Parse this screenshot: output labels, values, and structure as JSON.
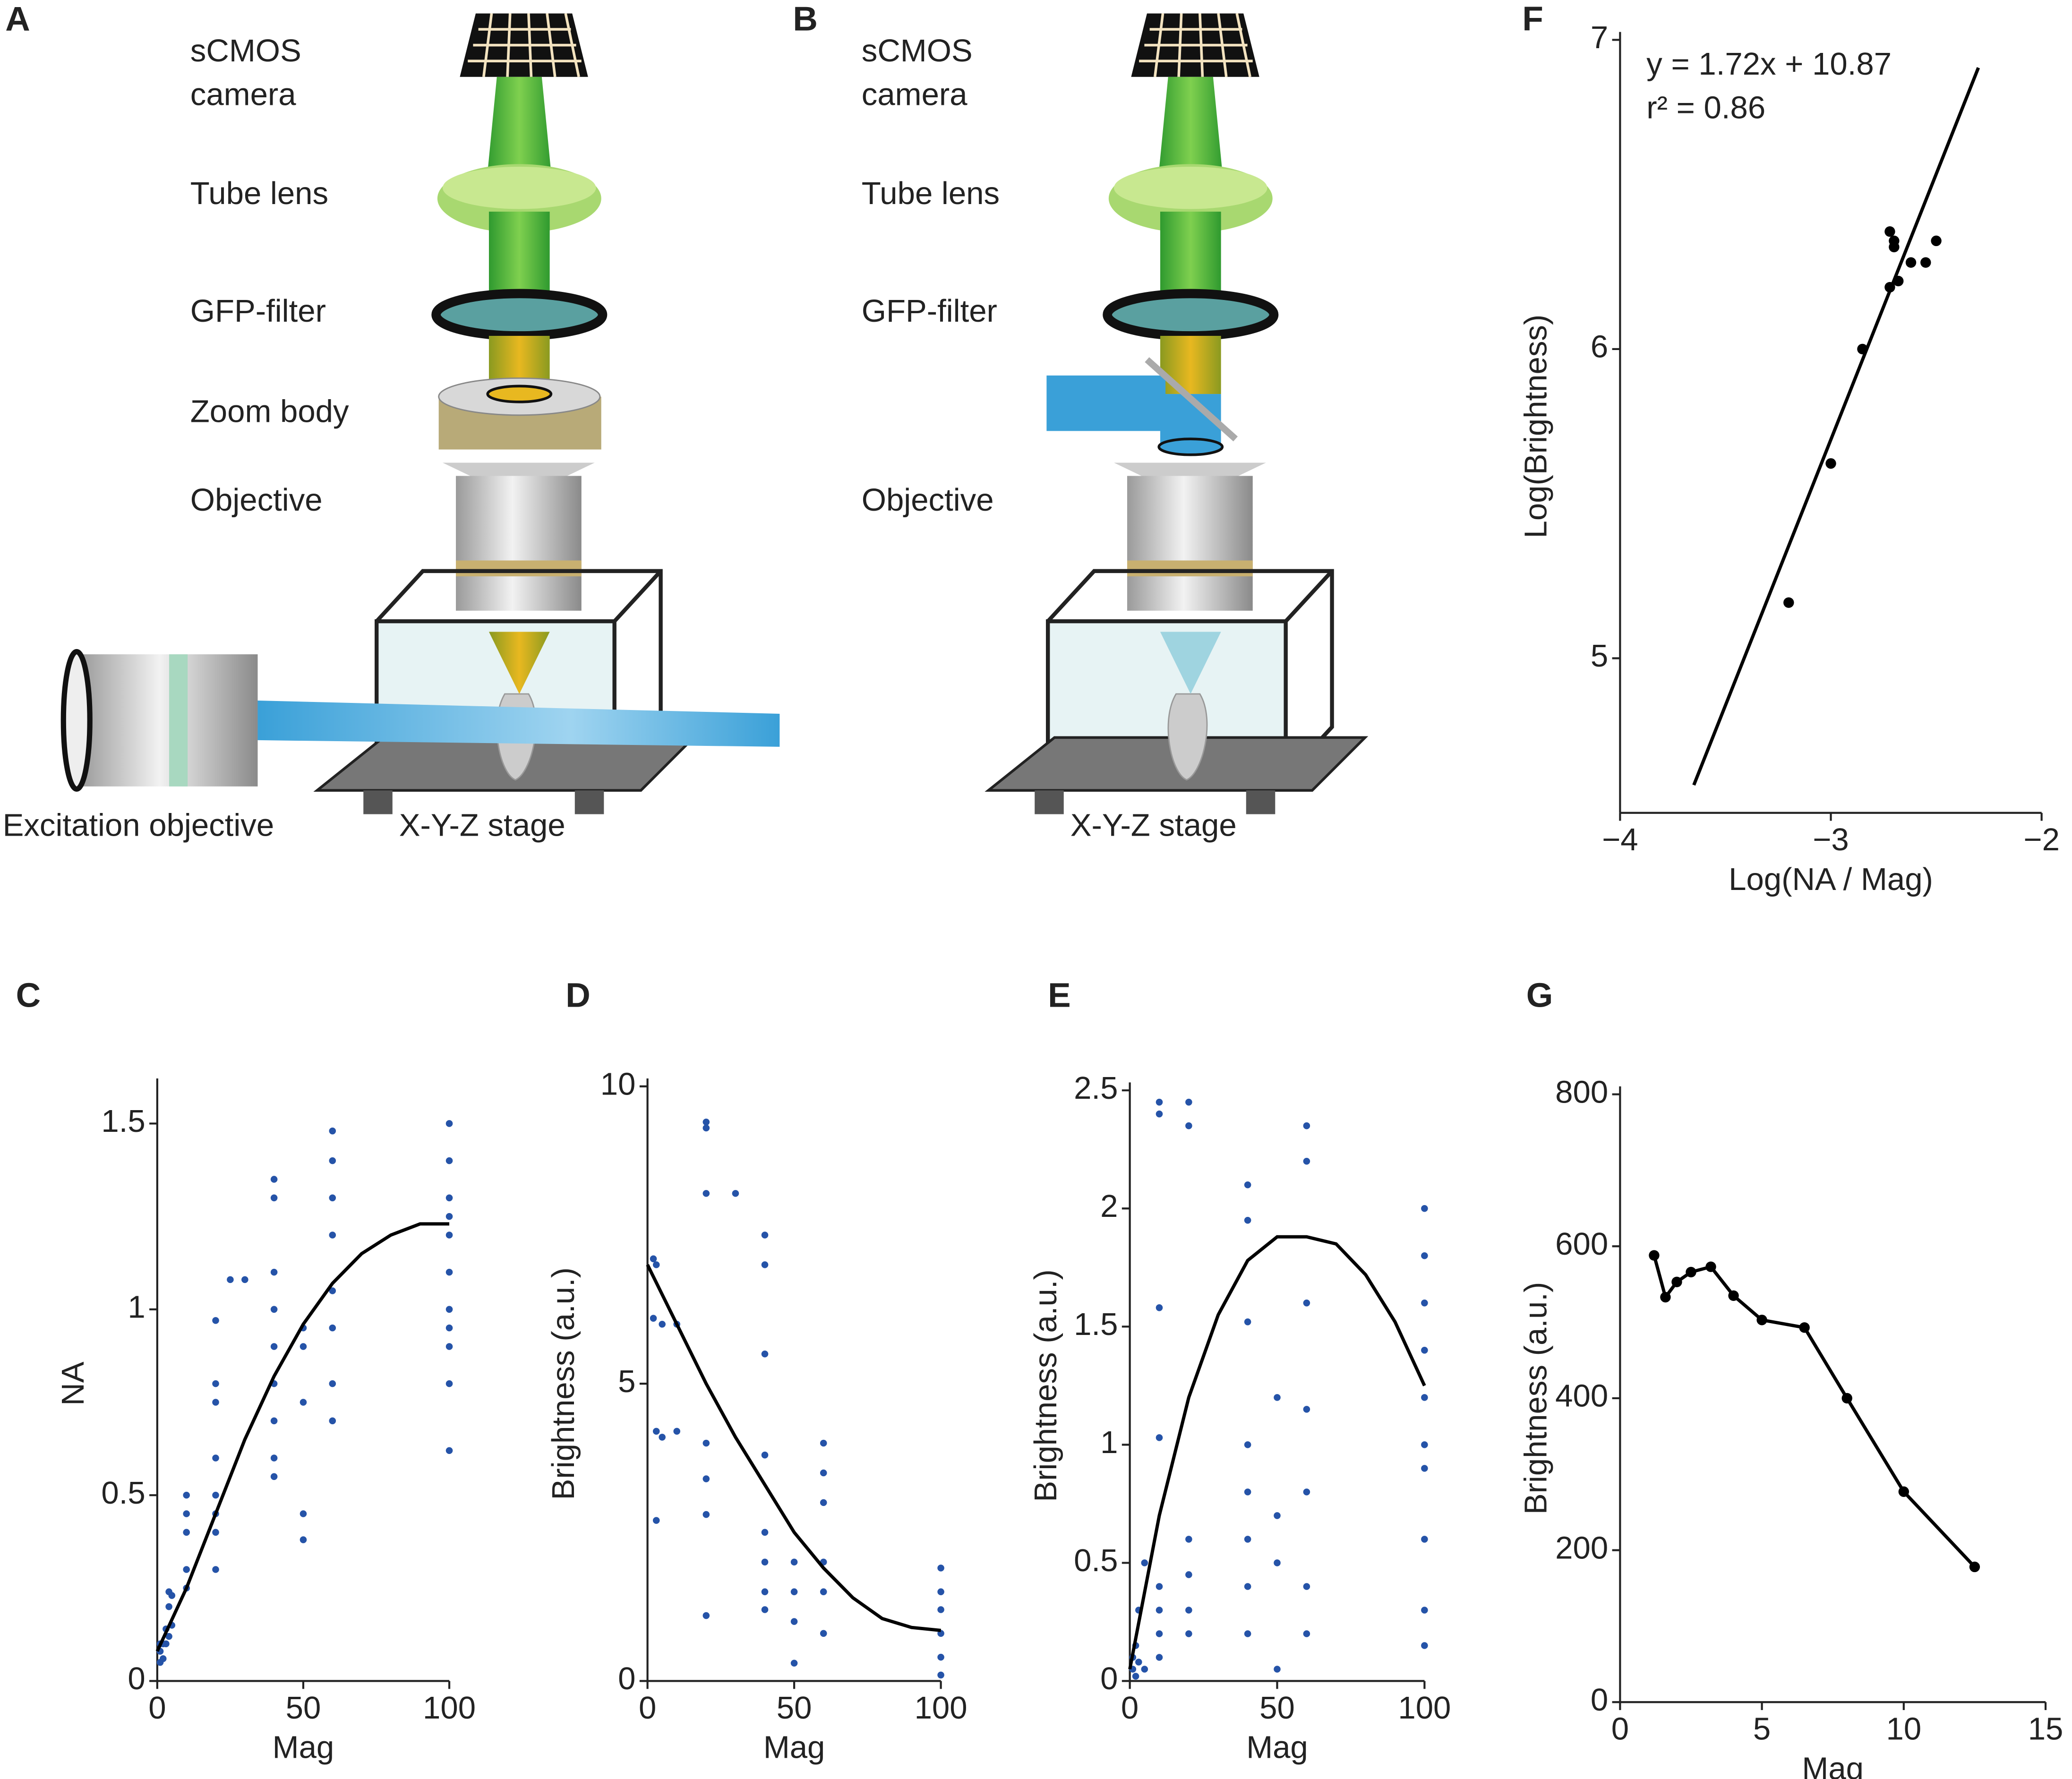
{
  "diagram_a": {
    "panel": "A",
    "camera": [
      "sCMOS",
      "camera"
    ],
    "tube_lens": "Tube lens",
    "filter": "GFP-filter",
    "zoom": "Zoom body",
    "objective": "Objective",
    "excitation": "Excitation objective",
    "stage": "X-Y-Z stage"
  },
  "diagram_b": {
    "panel": "B",
    "camera": [
      "sCMOS",
      "camera"
    ],
    "tube_lens": "Tube lens",
    "filter": "GFP-filter",
    "objective": "Objective",
    "stage": "X-Y-Z stage"
  },
  "chart_data": [
    {
      "type": "scatter",
      "panel": "C",
      "x_label": "Mag",
      "y_label": "NA",
      "xlim": [
        0,
        100
      ],
      "ylim": [
        0,
        1.6
      ],
      "xticks": [
        0,
        50,
        100
      ],
      "yticks": [
        0,
        0.5,
        1,
        1.5
      ],
      "series": [
        {
          "type": "scatter",
          "color": "#2553a8",
          "x": [
            1,
            1,
            1,
            2,
            2,
            3,
            3,
            4,
            4,
            4,
            5,
            5,
            10,
            10,
            10,
            10,
            10,
            20,
            20,
            20,
            20,
            20,
            20,
            20,
            20,
            25,
            30,
            40,
            40,
            40,
            40,
            40,
            40,
            40,
            40,
            40,
            50,
            50,
            50,
            50,
            50,
            60,
            60,
            60,
            60,
            60,
            60,
            60,
            60,
            100,
            100,
            100,
            100,
            100,
            100,
            100,
            100,
            100,
            100,
            100
          ],
          "values": [
            0.05,
            0.08,
            0.1,
            0.06,
            0.1,
            0.1,
            0.14,
            0.12,
            0.2,
            0.24,
            0.15,
            0.23,
            0.25,
            0.3,
            0.4,
            0.45,
            0.5,
            0.3,
            0.4,
            0.45,
            0.5,
            0.6,
            0.75,
            0.8,
            0.97,
            1.08,
            1.08,
            0.55,
            0.6,
            0.7,
            0.8,
            0.9,
            1.0,
            1.1,
            1.3,
            1.35,
            0.38,
            0.45,
            0.75,
            0.9,
            0.95,
            0.7,
            0.8,
            0.95,
            1.05,
            1.2,
            1.3,
            1.4,
            1.48,
            0.62,
            0.8,
            0.9,
            0.95,
            1.0,
            1.1,
            1.2,
            1.25,
            1.3,
            1.4,
            1.5
          ]
        },
        {
          "type": "line",
          "color": "#000000",
          "x": [
            0,
            10,
            20,
            30,
            40,
            50,
            60,
            70,
            80,
            90,
            100
          ],
          "values": [
            0.08,
            0.25,
            0.45,
            0.65,
            0.82,
            0.96,
            1.07,
            1.15,
            1.2,
            1.23,
            1.23
          ]
        }
      ]
    },
    {
      "type": "scatter",
      "panel": "D",
      "x_label": "Mag",
      "y_label": "Brightness (a.u.)",
      "xlim": [
        0,
        100
      ],
      "ylim": [
        0,
        10
      ],
      "xticks": [
        0,
        50,
        100
      ],
      "yticks": [
        0,
        5,
        10
      ],
      "series": [
        {
          "type": "scatter",
          "color": "#2553a8",
          "x": [
            2,
            2,
            3,
            3,
            3,
            5,
            5,
            10,
            10,
            20,
            20,
            20,
            20,
            20,
            20,
            20,
            30,
            40,
            40,
            40,
            40,
            40,
            40,
            40,
            40,
            50,
            50,
            50,
            50,
            60,
            60,
            60,
            60,
            60,
            60,
            100,
            100,
            100,
            100,
            100,
            100
          ],
          "values": [
            6.1,
            7.1,
            4.2,
            2.7,
            7.0,
            4.1,
            6.0,
            4.2,
            6.0,
            1.1,
            2.8,
            3.4,
            4.0,
            8.2,
            9.3,
            9.4,
            8.2,
            1.2,
            1.5,
            2.0,
            2.5,
            3.8,
            5.5,
            7.0,
            7.5,
            0.3,
            1.0,
            1.5,
            2.0,
            0.8,
            1.5,
            2.0,
            3.0,
            3.5,
            4.0,
            0.1,
            0.4,
            0.8,
            1.2,
            1.5,
            1.9
          ]
        },
        {
          "type": "line",
          "color": "#000000",
          "x": [
            0,
            10,
            20,
            30,
            40,
            50,
            60,
            70,
            80,
            90,
            100
          ],
          "values": [
            7,
            6,
            5,
            4.1,
            3.3,
            2.5,
            1.9,
            1.4,
            1.05,
            0.9,
            0.85
          ]
        }
      ]
    },
    {
      "type": "scatter",
      "panel": "E",
      "x_label": "Mag",
      "y_label": "Brightness (a.u.)",
      "xlim": [
        0,
        100
      ],
      "ylim": [
        0,
        2.5
      ],
      "xticks": [
        0,
        50,
        100
      ],
      "yticks": [
        0,
        0.5,
        1,
        1.5,
        2,
        2.5
      ],
      "series": [
        {
          "type": "scatter",
          "color": "#2553a8",
          "x": [
            1,
            1,
            2,
            2,
            3,
            3,
            5,
            5,
            10,
            10,
            10,
            10,
            10,
            10,
            10,
            10,
            20,
            20,
            20,
            20,
            20,
            20,
            40,
            40,
            40,
            40,
            40,
            40,
            40,
            40,
            50,
            50,
            50,
            50,
            60,
            60,
            60,
            60,
            60,
            60,
            60,
            100,
            100,
            100,
            100,
            100,
            100,
            100,
            100,
            100,
            100
          ],
          "values": [
            0.05,
            0.1,
            0.02,
            0.15,
            0.08,
            0.3,
            0.5,
            0.05,
            0.1,
            0.2,
            0.3,
            0.4,
            1.03,
            1.58,
            2.4,
            2.45,
            0.2,
            0.3,
            0.45,
            0.6,
            2.35,
            2.45,
            0.2,
            0.4,
            0.6,
            0.8,
            1.0,
            1.52,
            1.95,
            2.1,
            0.05,
            0.5,
            0.7,
            1.2,
            0.2,
            0.4,
            0.8,
            1.15,
            1.6,
            2.2,
            2.35,
            0.15,
            0.3,
            0.6,
            0.9,
            1.0,
            1.2,
            1.4,
            1.6,
            1.8,
            2.0
          ]
        },
        {
          "type": "line",
          "color": "#000000",
          "x": [
            0,
            10,
            20,
            30,
            40,
            50,
            60,
            70,
            80,
            90,
            100
          ],
          "values": [
            0.05,
            0.7,
            1.2,
            1.55,
            1.78,
            1.88,
            1.88,
            1.85,
            1.72,
            1.52,
            1.25
          ]
        }
      ]
    },
    {
      "type": "scatter",
      "panel": "F",
      "x_label": "Log(NA / Mag)",
      "y_label": "Log(Brightness)",
      "annotations": [
        "y = 1.72x + 10.87",
        "r² = 0.86"
      ],
      "xlim": [
        -4,
        -2
      ],
      "ylim": [
        4.5,
        7
      ],
      "xticks": [
        {
          "value": -4,
          "label": "−4"
        },
        {
          "value": -3,
          "label": "−3"
        },
        {
          "value": -2,
          "label": "−2"
        }
      ],
      "yticks": [
        5,
        6,
        7
      ],
      "series": [
        {
          "type": "scatter",
          "color": "#000000",
          "x": [
            -3.2,
            -3.0,
            -2.85,
            -2.72,
            -2.68,
            -2.62,
            -2.55,
            -2.5,
            -2.72,
            -2.7,
            -2.7
          ],
          "values": [
            5.18,
            5.63,
            6.0,
            6.2,
            6.22,
            6.28,
            6.28,
            6.35,
            6.38,
            6.33,
            6.35
          ]
        },
        {
          "type": "line",
          "color": "#000000",
          "x": [
            -3.65,
            -2.3
          ],
          "values": [
            4.59,
            6.91
          ]
        }
      ]
    },
    {
      "type": "line",
      "panel": "G",
      "x_label": "Mag",
      "y_label": "Brightness (a.u.)",
      "xlim": [
        0,
        15
      ],
      "ylim": [
        0,
        800
      ],
      "xticks": [
        0,
        5,
        10,
        15
      ],
      "yticks": [
        0,
        200,
        400,
        600,
        800
      ],
      "series": [
        {
          "type": "line",
          "markers": true,
          "color": "#000000",
          "x": [
            1.2,
            1.6,
            2,
            2.5,
            3.2,
            4,
            5,
            6.5,
            8,
            10,
            12.5
          ],
          "values": [
            588,
            533,
            553,
            566,
            573,
            535,
            503,
            493,
            400,
            277,
            178
          ]
        }
      ]
    }
  ]
}
